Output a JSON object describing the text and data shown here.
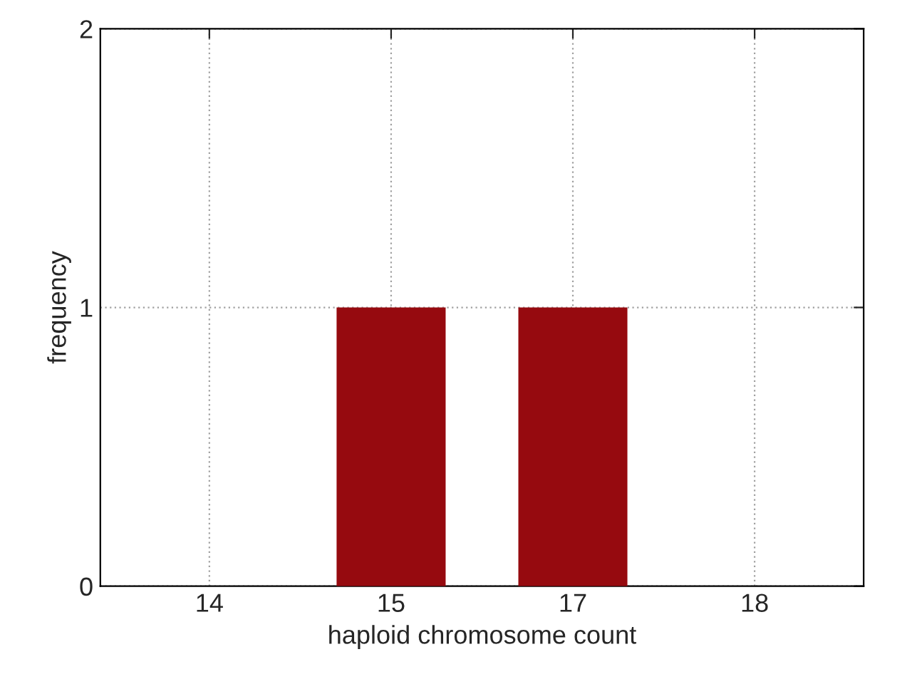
{
  "chart_data": {
    "type": "bar",
    "xlabel": "haploid chromosome count",
    "ylabel": "frequency",
    "categories": [
      "14",
      "15",
      "17",
      "18"
    ],
    "values": [
      0,
      1,
      1,
      0
    ],
    "color": "#960a0f",
    "ylim": [
      0,
      2
    ],
    "yticks": [
      0,
      1,
      2
    ],
    "grid": true
  }
}
